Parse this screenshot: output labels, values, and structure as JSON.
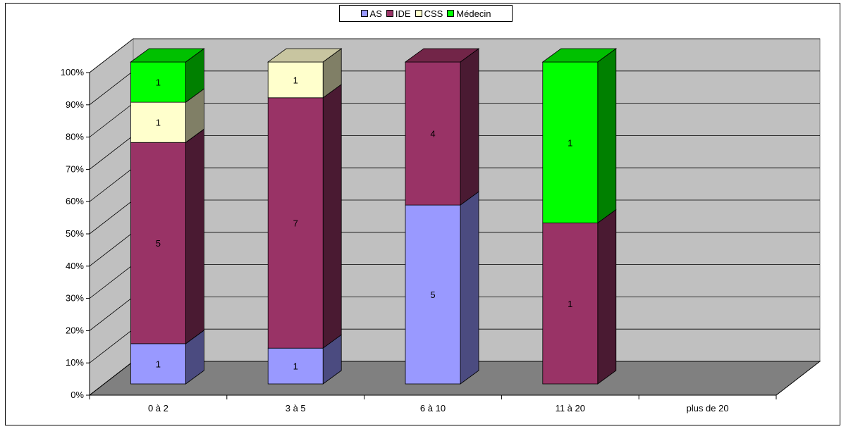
{
  "chart_data": {
    "type": "bar",
    "stacked": true,
    "normalized_percent": true,
    "three_d": true,
    "categories": [
      "0 à 2",
      "3 à 5",
      "6 à 10",
      "11 à 20",
      "plus de 20"
    ],
    "series": [
      {
        "name": "AS",
        "color": "#9999FF",
        "side_color": "#4B4B80",
        "top_color": "#CCCCFF",
        "values": [
          1,
          1,
          5,
          0,
          0
        ]
      },
      {
        "name": "IDE",
        "color": "#993366",
        "side_color": "#4A1A32",
        "top_color": "#722548",
        "values": [
          5,
          7,
          4,
          1,
          0
        ]
      },
      {
        "name": "CSS",
        "color": "#FFFFCC",
        "side_color": "#807F66",
        "top_color": "#C8C5A0",
        "values": [
          1,
          1,
          0,
          0,
          0
        ]
      },
      {
        "name": "Médecin",
        "color": "#00FF00",
        "side_color": "#008000",
        "top_color": "#00C000",
        "values": [
          1,
          0,
          0,
          1,
          0
        ]
      }
    ],
    "y_ticks": [
      "0%",
      "10%",
      "20%",
      "30%",
      "40%",
      "50%",
      "60%",
      "70%",
      "80%",
      "90%",
      "100%"
    ],
    "ylim": [
      0,
      100
    ],
    "legend_position": "top-center",
    "grid": true
  }
}
